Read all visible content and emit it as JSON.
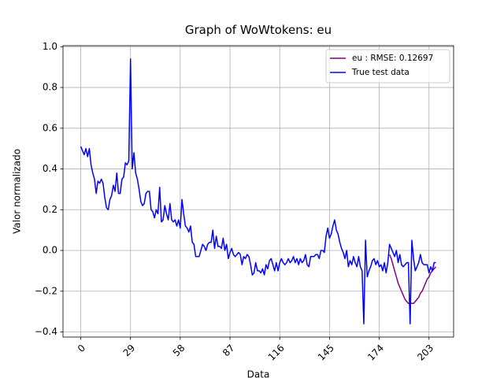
{
  "chart_data": {
    "type": "line",
    "title": "Graph of WoWtokens: eu",
    "x_label": "Data",
    "y_label": "Valor normalizado",
    "xlim": [
      -10.35,
      217.35
    ],
    "ylim": [
      -0.425,
      1.005
    ],
    "xticks": [
      0,
      29,
      58,
      87,
      116,
      145,
      174,
      203
    ],
    "yticks": [
      {
        "value": -0.4,
        "label": "−0.4"
      },
      {
        "value": -0.2,
        "label": "−0.2"
      },
      {
        "value": 0,
        "label": "0.0"
      },
      0.2,
      0.4,
      0.6,
      0.8,
      {
        "value": 1,
        "label": "1.0"
      }
    ],
    "grid": true,
    "legend": "upper right",
    "series": [
      {
        "name": "eu : RMSE: 0.12697",
        "color": "#800080",
        "x": [
          180,
          181,
          182,
          183,
          184,
          185,
          186,
          187,
          188,
          189,
          190,
          191,
          192,
          193,
          194,
          195,
          196,
          197,
          198,
          199,
          200,
          201,
          202,
          203,
          204,
          205,
          206,
          207
        ],
        "values": [
          -0.02,
          -0.04,
          -0.07,
          -0.1,
          -0.13,
          -0.16,
          -0.18,
          -0.2,
          -0.22,
          -0.24,
          -0.25,
          -0.26,
          -0.26,
          -0.26,
          -0.26,
          -0.25,
          -0.24,
          -0.23,
          -0.21,
          -0.2,
          -0.18,
          -0.16,
          -0.14,
          -0.13,
          -0.11,
          -0.1,
          -0.09,
          -0.08
        ]
      },
      {
        "name": "True test data",
        "color": "#0000ff",
        "x": [
          0,
          1,
          2,
          3,
          4,
          5,
          6,
          7,
          8,
          9,
          10,
          11,
          12,
          13,
          14,
          15,
          16,
          17,
          18,
          19,
          20,
          21,
          22,
          23,
          24,
          25,
          26,
          27,
          28,
          29,
          30,
          31,
          32,
          33,
          34,
          35,
          36,
          37,
          38,
          39,
          40,
          41,
          42,
          43,
          44,
          45,
          46,
          47,
          48,
          49,
          50,
          51,
          52,
          53,
          54,
          55,
          56,
          57,
          58,
          59,
          60,
          61,
          62,
          63,
          64,
          65,
          66,
          67,
          68,
          69,
          70,
          71,
          72,
          73,
          74,
          75,
          76,
          77,
          78,
          79,
          80,
          81,
          82,
          83,
          84,
          85,
          86,
          87,
          88,
          89,
          90,
          91,
          92,
          93,
          94,
          95,
          96,
          97,
          98,
          99,
          100,
          101,
          102,
          103,
          104,
          105,
          106,
          107,
          108,
          109,
          110,
          111,
          112,
          113,
          114,
          115,
          116,
          117,
          118,
          119,
          120,
          121,
          122,
          123,
          124,
          125,
          126,
          127,
          128,
          129,
          130,
          131,
          132,
          133,
          134,
          135,
          136,
          137,
          138,
          139,
          140,
          141,
          142,
          143,
          144,
          145,
          146,
          147,
          148,
          149,
          150,
          151,
          152,
          153,
          154,
          155,
          156,
          157,
          158,
          159,
          160,
          161,
          162,
          163,
          164,
          165,
          166,
          167,
          168,
          169,
          170,
          171,
          172,
          173,
          174,
          175,
          176,
          177,
          178,
          179,
          180,
          181,
          182,
          183,
          184,
          185,
          186,
          187,
          188,
          189,
          190,
          191,
          192,
          193,
          194,
          195,
          196,
          197,
          198,
          199,
          200,
          201,
          202,
          203,
          204,
          205,
          206,
          207
        ],
        "values": [
          0.51,
          0.49,
          0.47,
          0.5,
          0.46,
          0.5,
          0.42,
          0.38,
          0.35,
          0.28,
          0.34,
          0.33,
          0.35,
          0.33,
          0.26,
          0.21,
          0.2,
          0.25,
          0.27,
          0.32,
          0.29,
          0.38,
          0.28,
          0.28,
          0.35,
          0.36,
          0.43,
          0.42,
          0.44,
          0.94,
          0.4,
          0.48,
          0.38,
          0.35,
          0.3,
          0.24,
          0.22,
          0.23,
          0.28,
          0.29,
          0.29,
          0.2,
          0.19,
          0.16,
          0.2,
          0.18,
          0.31,
          0.14,
          0.15,
          0.22,
          0.18,
          0.15,
          0.23,
          0.15,
          0.14,
          0.15,
          0.12,
          0.15,
          0.11,
          0.25,
          0.18,
          0.12,
          0.11,
          0.09,
          0.12,
          0.04,
          0.03,
          -0.03,
          -0.03,
          -0.03,
          0.0,
          0.03,
          0.02,
          0.0,
          0.03,
          0.04,
          0.04,
          0.1,
          0.01,
          0.07,
          0.02,
          0.02,
          0.01,
          0.06,
          0.0,
          0.03,
          -0.04,
          -0.01,
          0.01,
          -0.02,
          -0.03,
          -0.02,
          -0.01,
          -0.02,
          -0.07,
          -0.03,
          -0.04,
          -0.02,
          -0.03,
          -0.07,
          -0.12,
          -0.11,
          -0.06,
          -0.1,
          -0.1,
          -0.11,
          -0.09,
          -0.12,
          -0.07,
          -0.09,
          -0.05,
          -0.04,
          -0.07,
          -0.1,
          -0.06,
          -0.1,
          -0.06,
          -0.04,
          -0.06,
          -0.07,
          -0.06,
          -0.04,
          -0.06,
          -0.05,
          -0.03,
          -0.06,
          -0.04,
          -0.07,
          -0.04,
          -0.06,
          -0.05,
          -0.02,
          -0.07,
          -0.08,
          -0.03,
          -0.03,
          -0.03,
          -0.02,
          -0.02,
          -0.04,
          0.0,
          0.0,
          -0.01,
          0.07,
          0.11,
          0.06,
          0.08,
          0.12,
          0.15,
          0.1,
          0.08,
          0.04,
          0.01,
          -0.01,
          -0.04,
          0.0,
          -0.08,
          -0.05,
          -0.07,
          -0.03,
          -0.06,
          -0.08,
          -0.03,
          -0.08,
          -0.1,
          -0.36,
          0.05,
          -0.13,
          -0.1,
          -0.08,
          -0.05,
          -0.04,
          -0.07,
          -0.05,
          -0.08,
          -0.07,
          -0.1,
          -0.06,
          -0.11,
          -0.06,
          0.03,
          0.01,
          -0.01,
          -0.03,
          0.0,
          -0.06,
          -0.02,
          -0.07,
          -0.08,
          -0.07,
          -0.06,
          -0.06,
          -0.36,
          0.05,
          -0.04,
          -0.1,
          -0.08,
          -0.06,
          -0.02,
          -0.06,
          -0.07,
          -0.07,
          -0.07,
          -0.11,
          -0.08,
          -0.1,
          -0.06,
          -0.06
        ]
      }
    ]
  }
}
